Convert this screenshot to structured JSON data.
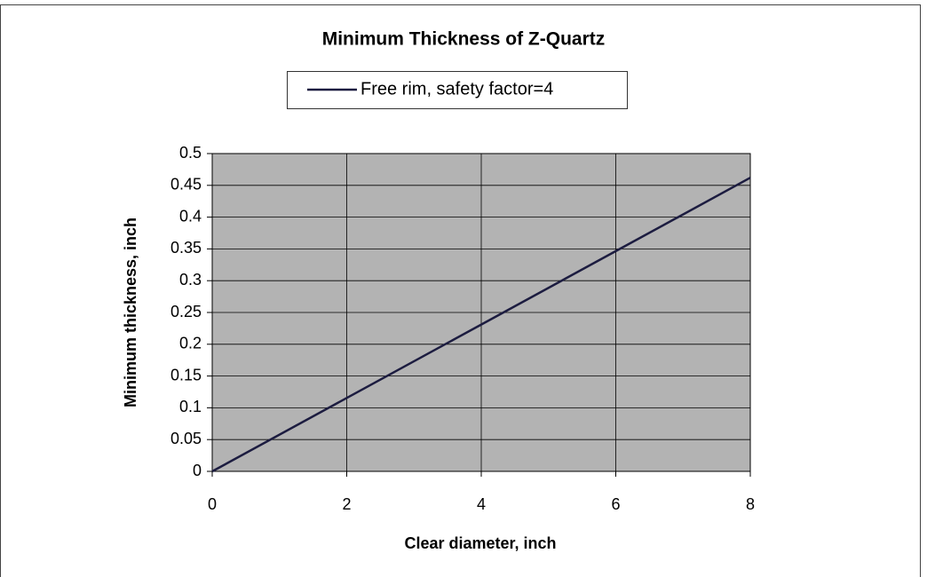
{
  "chart_data": {
    "type": "line",
    "title": "Minimum Thickness of Z-Quartz",
    "x_label": "Clear diameter, inch",
    "y_label": "Minimum thickness, inch",
    "x": [
      0,
      2,
      4,
      6,
      8
    ],
    "series": [
      {
        "name": "Free rim, safety factor=4",
        "color": "#1c1c40",
        "values": [
          0,
          0.1155,
          0.231,
          0.3465,
          0.462
        ]
      }
    ],
    "xlim": [
      0,
      8
    ],
    "xticks": [
      0,
      2,
      4,
      6,
      8
    ],
    "ylim": [
      0,
      0.5
    ],
    "yticks": [
      0,
      0.05,
      0.1,
      0.15,
      0.2,
      0.25,
      0.3,
      0.35,
      0.4,
      0.45,
      0.5
    ],
    "grid": true,
    "legend": "top"
  }
}
